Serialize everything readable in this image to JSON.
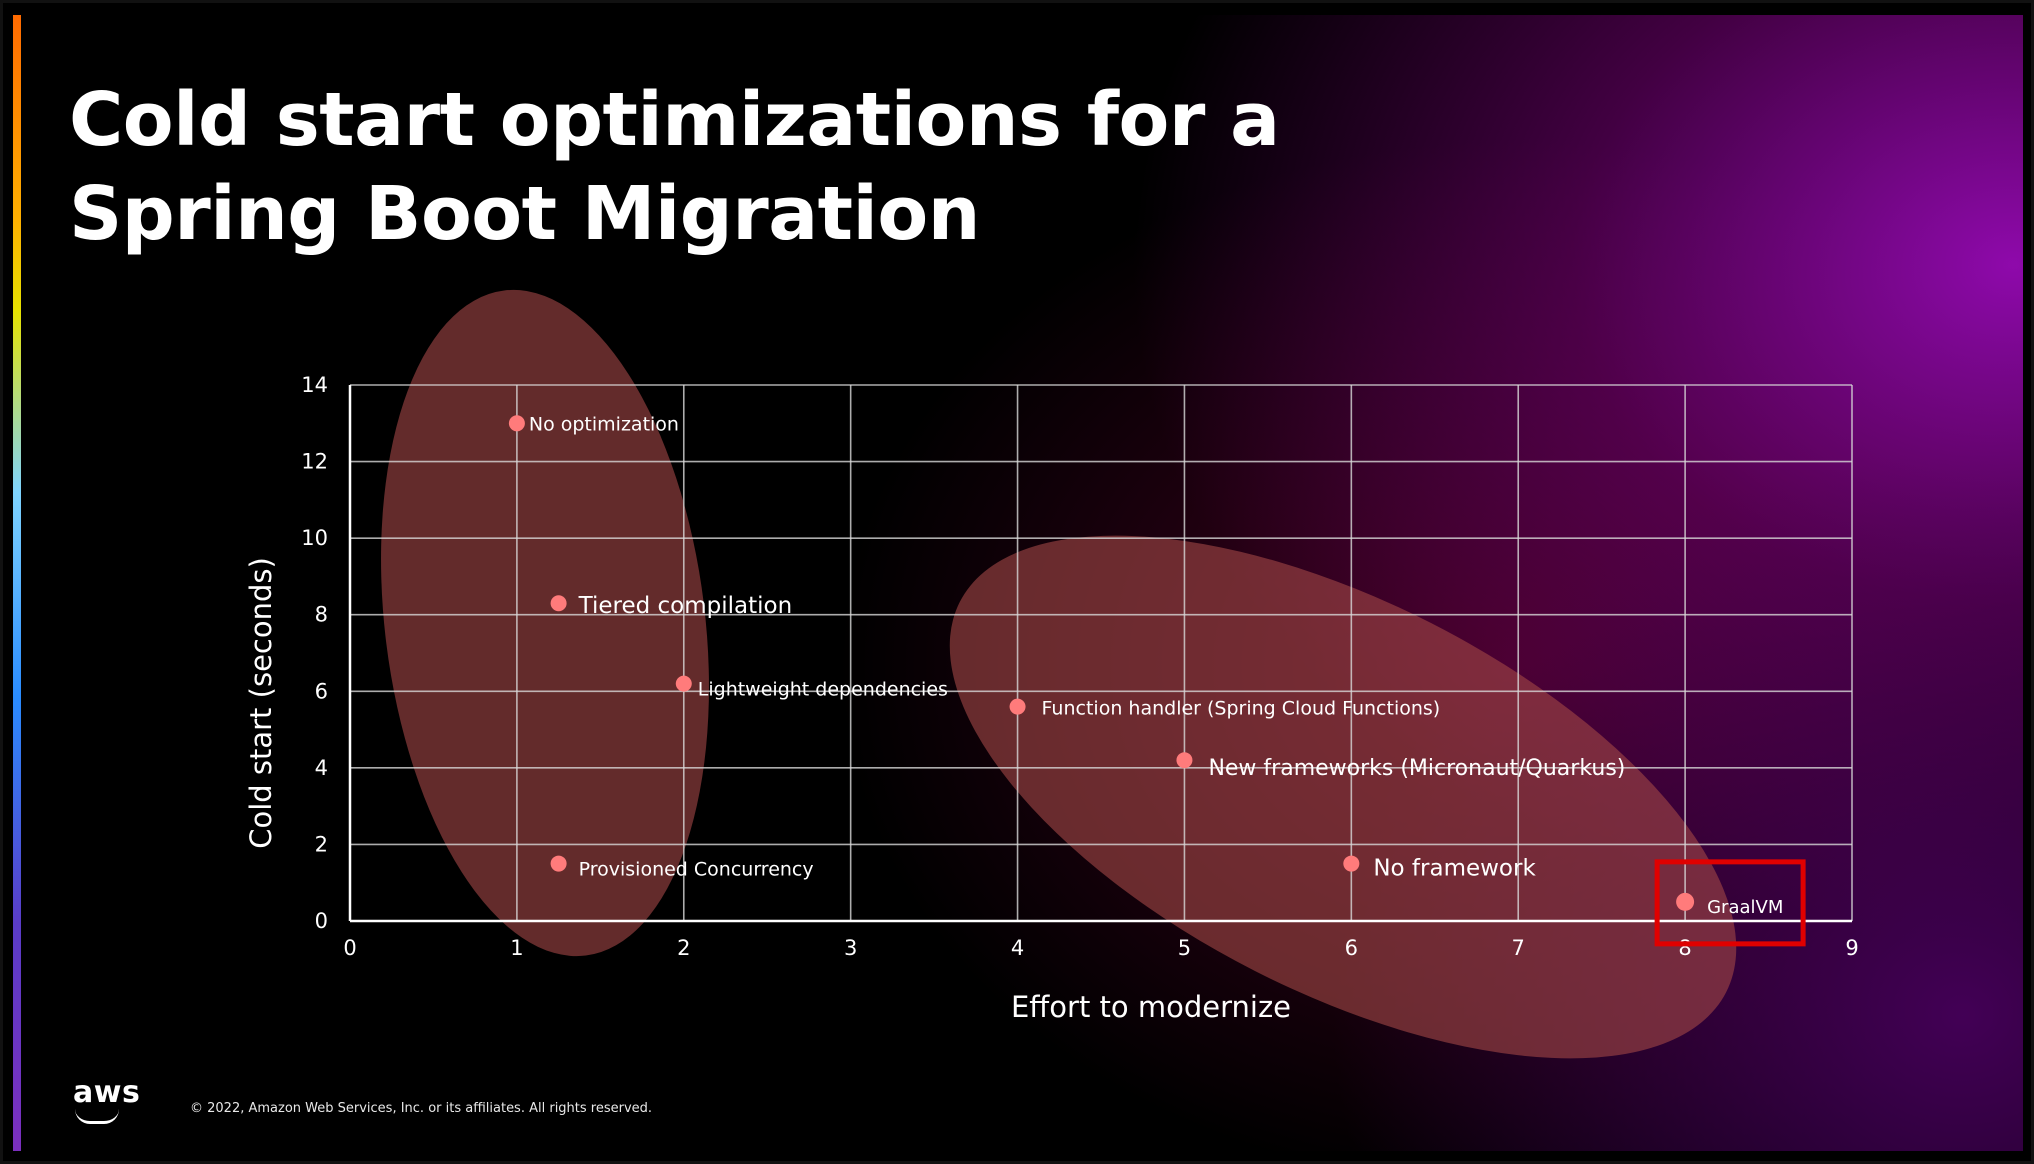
{
  "slide": {
    "title_line1": "Cold start optimizations for a",
    "title_line2": "Spring Boot Migration",
    "footer": {
      "logo_text": "aws",
      "copyright": "© 2022, Amazon Web Services, Inc. or its affiliates. All rights reserved."
    }
  },
  "chart_data": {
    "type": "scatter",
    "xlabel": "Effort to modernize",
    "ylabel": "Cold start (seconds)",
    "xlim": [
      0,
      9
    ],
    "ylim": [
      0,
      14
    ],
    "xticks": [
      0,
      1,
      2,
      3,
      4,
      5,
      6,
      7,
      8,
      9
    ],
    "yticks": [
      0,
      2,
      4,
      6,
      8,
      10,
      12,
      14
    ],
    "grid": true,
    "points": [
      {
        "label": "No optimization",
        "x": 1.0,
        "y": 13.0
      },
      {
        "label": "Tiered compilation",
        "x": 1.25,
        "y": 8.3
      },
      {
        "label": "Lightweight dependencies",
        "x": 2.0,
        "y": 6.2
      },
      {
        "label": "Provisioned Concurrency",
        "x": 1.25,
        "y": 1.5
      },
      {
        "label": "Function handler (Spring Cloud Functions)",
        "x": 4.0,
        "y": 5.6
      },
      {
        "label": "New frameworks (Micronaut/Quarkus)",
        "x": 5.0,
        "y": 4.2
      },
      {
        "label": "No framework",
        "x": 6.0,
        "y": 1.5
      },
      {
        "label": "GraalVM",
        "x": 8.0,
        "y": 0.5,
        "highlighted": true
      }
    ],
    "colors": {
      "point": "#ff7b7b",
      "grid": "#d8d8d8",
      "highlight_box": "#e00000",
      "cluster_fill": "#a04545"
    }
  }
}
